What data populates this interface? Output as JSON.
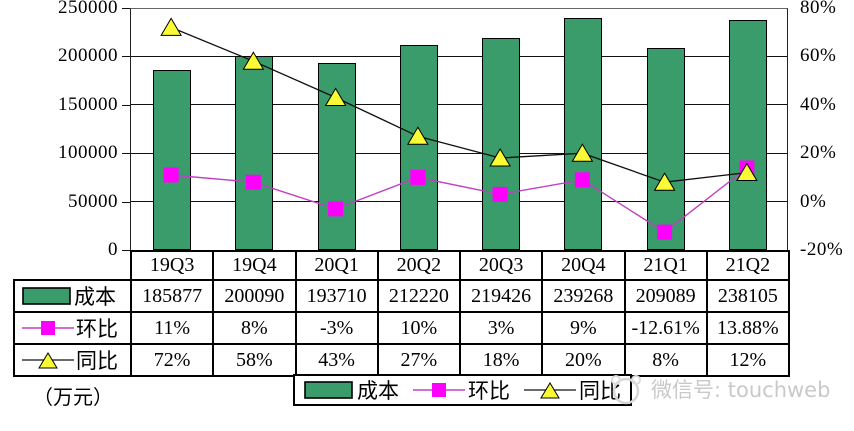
{
  "chart_data": {
    "type": "combo-bar-line",
    "categories": [
      "19Q3",
      "19Q4",
      "20Q1",
      "20Q2",
      "20Q3",
      "20Q4",
      "21Q1",
      "21Q2"
    ],
    "series": [
      {
        "name": "成本",
        "type": "bar",
        "axis": "left",
        "values": [
          185877,
          200090,
          193710,
          212220,
          219426,
          239268,
          209089,
          238105
        ]
      },
      {
        "name": "环比",
        "type": "line",
        "axis": "right",
        "marker": "square",
        "values": [
          11,
          8,
          -3,
          10,
          3,
          9,
          -12.61,
          13.88
        ]
      },
      {
        "name": "同比",
        "type": "line",
        "axis": "right",
        "marker": "triangle",
        "values": [
          72,
          58,
          43,
          27,
          18,
          20,
          8,
          12
        ]
      }
    ],
    "left_axis": {
      "ticks": [
        "250000",
        "200000",
        "150000",
        "100000",
        "50000",
        "0"
      ],
      "min": 0,
      "max": 250000
    },
    "right_axis": {
      "ticks": [
        "80%",
        "60%",
        "40%",
        "20%",
        "0%",
        "-20%"
      ],
      "min": -20,
      "max": 80
    },
    "grid": true,
    "legend_position": "bottom"
  },
  "table": {
    "header": [
      "19Q3",
      "19Q4",
      "20Q1",
      "20Q2",
      "20Q3",
      "20Q4",
      "21Q1",
      "21Q2"
    ],
    "rows": [
      {
        "label": "成本",
        "marker": "bar",
        "cells": [
          "185877",
          "200090",
          "193710",
          "212220",
          "219426",
          "239268",
          "209089",
          "238105"
        ]
      },
      {
        "label": "环比",
        "marker": "square-line",
        "cells": [
          "11%",
          "8%",
          "-3%",
          "10%",
          "3%",
          "9%",
          "-12.61%",
          "13.88%"
        ]
      },
      {
        "label": "同比",
        "marker": "triangle-line",
        "cells": [
          "72%",
          "58%",
          "43%",
          "27%",
          "18%",
          "20%",
          "8%",
          "12%"
        ]
      }
    ]
  },
  "legend": [
    {
      "label": "成本",
      "marker": "bar"
    },
    {
      "label": "环比",
      "marker": "square-line"
    },
    {
      "label": "同比",
      "marker": "triangle-line"
    }
  ],
  "footer": {
    "unit": "（万元）",
    "watermark": "微信号: touchweb"
  },
  "colors": {
    "bar_fill": "#3A9B6B",
    "bar_border": "#000000",
    "huanbi_line": "#C040C0",
    "huanbi_marker": "#FF00FF",
    "tongbi_line": "#101010",
    "tongbi_marker": "#FAFA35",
    "watermark": "#c9c9c9"
  }
}
